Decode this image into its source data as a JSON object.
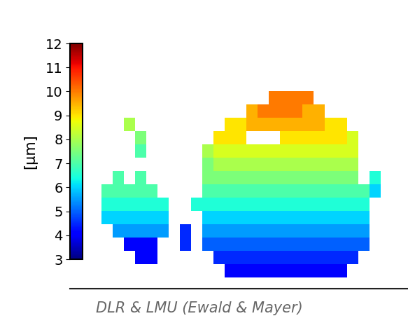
{
  "chart_data": {
    "type": "heatmap",
    "colorbar_label": "[µm]",
    "source": "DLR & LMU (Ewald & Mayer)",
    "tick_labels": false,
    "color_range": [
      3,
      12
    ],
    "color_ticks": [
      3,
      4,
      5,
      6,
      7,
      8,
      9,
      10,
      11,
      12
    ],
    "cells": [
      [
        null,
        null,
        null,
        null,
        null,
        null,
        null,
        null,
        null,
        null,
        null,
        null,
        null,
        null,
        null,
        10,
        10,
        10,
        10,
        null,
        null,
        null,
        null,
        null,
        null,
        null
      ],
      [
        null,
        null,
        null,
        null,
        null,
        null,
        null,
        null,
        null,
        null,
        null,
        null,
        null,
        9.5,
        10,
        10,
        10,
        10,
        9.5,
        9.5,
        null,
        null,
        null,
        null,
        null,
        null
      ],
      [
        null,
        null,
        8,
        null,
        null,
        null,
        null,
        null,
        null,
        null,
        null,
        9,
        9,
        9.5,
        9.5,
        9.5,
        9.5,
        9.5,
        9.5,
        9.5,
        9,
        9,
        null,
        null,
        null,
        null
      ],
      [
        null,
        null,
        null,
        7.5,
        null,
        null,
        null,
        null,
        null,
        null,
        9,
        9,
        9,
        null,
        null,
        null,
        9,
        9,
        9,
        9,
        9,
        9,
        8.5,
        null,
        null,
        null
      ],
      [
        null,
        null,
        null,
        7,
        null,
        null,
        null,
        null,
        null,
        8,
        8.5,
        8.5,
        8.5,
        8.5,
        8.5,
        8.5,
        8.5,
        8.5,
        8.5,
        8.5,
        8.5,
        8.5,
        8.5,
        null,
        null,
        null
      ],
      [
        null,
        null,
        null,
        null,
        null,
        null,
        null,
        null,
        null,
        7.5,
        8,
        8,
        8,
        8,
        8,
        8,
        8,
        8,
        8,
        8,
        8,
        8,
        8,
        null,
        null,
        null
      ],
      [
        null,
        7,
        null,
        7,
        null,
        null,
        null,
        null,
        null,
        7.5,
        7.5,
        7.5,
        7.5,
        7.5,
        7.5,
        7.5,
        7.5,
        7.5,
        7.5,
        7.5,
        7.5,
        7.5,
        7.5,
        null,
        6.5,
        null
      ],
      [
        7,
        7,
        7,
        7,
        7,
        null,
        null,
        null,
        null,
        7,
        7,
        7,
        7,
        7,
        7,
        7,
        7,
        7,
        7,
        7,
        7,
        7,
        7,
        7,
        6,
        null
      ],
      [
        6.5,
        6.5,
        6.5,
        6.5,
        6.5,
        6.5,
        null,
        null,
        6.5,
        6.5,
        6.5,
        6.5,
        6.5,
        6.5,
        6.5,
        6.5,
        6.5,
        6.5,
        6.5,
        6.5,
        6.5,
        6.5,
        6.5,
        6.5,
        null,
        null
      ],
      [
        6,
        6,
        6,
        6,
        6,
        6,
        null,
        null,
        null,
        6,
        6,
        6,
        6,
        6,
        6,
        6,
        6,
        6,
        6,
        6,
        6,
        6,
        6,
        6,
        null,
        null
      ],
      [
        null,
        5.5,
        5.5,
        5.5,
        5.5,
        5.5,
        null,
        4.5,
        null,
        5.5,
        5.5,
        5.5,
        5.5,
        5.5,
        5.5,
        5.5,
        5.5,
        5.5,
        5.5,
        5.5,
        5.5,
        5.5,
        5.5,
        5.5,
        null,
        null
      ],
      [
        null,
        null,
        4,
        4,
        4,
        null,
        null,
        4.5,
        null,
        5,
        5,
        5,
        5,
        5,
        5,
        5,
        5,
        5,
        5,
        5,
        5,
        5,
        5,
        5,
        null,
        null
      ],
      [
        null,
        null,
        null,
        4,
        4,
        null,
        null,
        null,
        null,
        null,
        4.5,
        4.5,
        4.5,
        4.5,
        4.5,
        4.5,
        4.5,
        4.5,
        4.5,
        4.5,
        4.5,
        4.5,
        4.5,
        null,
        null,
        null
      ],
      [
        null,
        null,
        null,
        null,
        null,
        null,
        null,
        null,
        null,
        null,
        null,
        4,
        4,
        4,
        4,
        4,
        4,
        4,
        4,
        4,
        4,
        4,
        null,
        null,
        null,
        null
      ]
    ]
  }
}
